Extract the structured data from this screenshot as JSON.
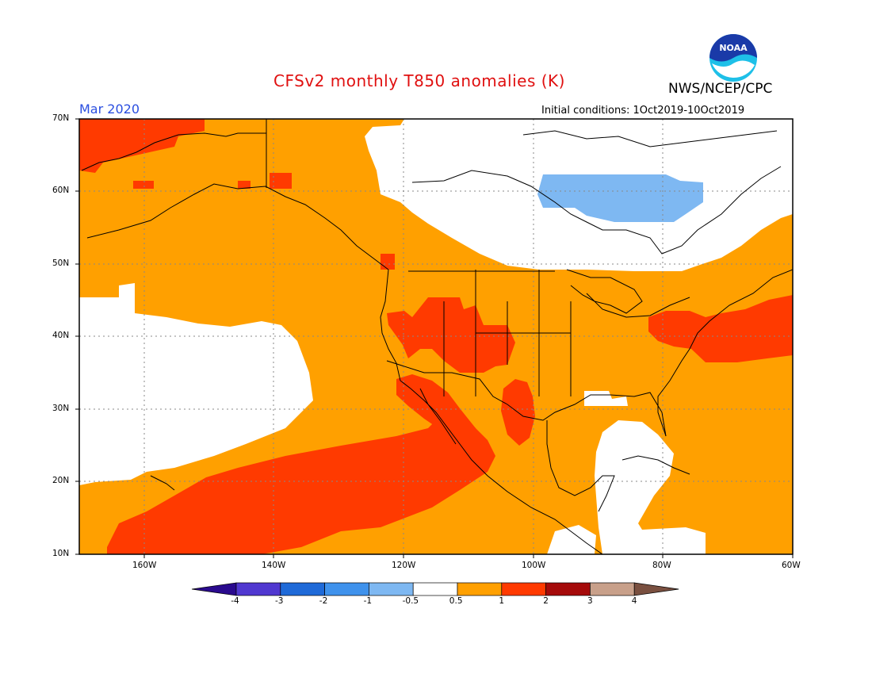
{
  "title": "CFSv2 monthly T850 anomalies (K)",
  "organization": "NWS/NCEP/CPC",
  "logo_text": "NOAA",
  "valid_month": "Mar 2020",
  "initial_conditions": "Initial conditions: 1Oct2019-10Oct2019",
  "map": {
    "lon_range": [
      -170,
      -60
    ],
    "lat_range": [
      10,
      70
    ],
    "lat_labels": [
      "70N",
      "60N",
      "50N",
      "40N",
      "30N",
      "20N",
      "10N"
    ],
    "lon_labels": [
      "160W",
      "140W",
      "120W",
      "100W",
      "80W",
      "60W"
    ],
    "background_anomaly_class": "0.5 to 1"
  },
  "colorbar": {
    "labels": [
      "-4",
      "-3",
      "-2",
      "-1",
      "-0.5",
      "0.5",
      "1",
      "2",
      "3",
      "4"
    ],
    "colors": [
      "#2a0a8e",
      "#5038d0",
      "#1f6ad8",
      "#3f92ec",
      "#7eb8f2",
      "#ffffff",
      "#ffa000",
      "#ff3a00",
      "#a50a0a",
      "#c8a08a",
      "#7a5040"
    ]
  }
}
